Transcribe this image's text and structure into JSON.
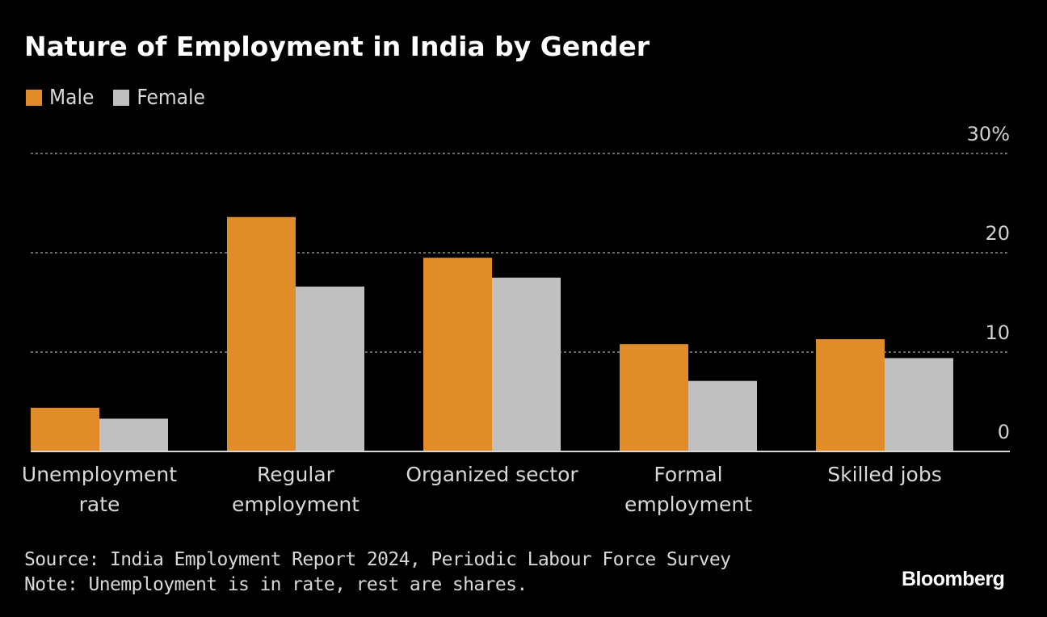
{
  "chart_data": {
    "type": "bar",
    "title": "Nature of Employment in India by Gender",
    "categories": [
      [
        "Unemployment",
        "rate"
      ],
      [
        "Regular",
        "employment"
      ],
      [
        "Organized sector"
      ],
      [
        "Formal",
        "employment"
      ],
      [
        "Skilled jobs"
      ]
    ],
    "series": [
      {
        "name": "Male",
        "color": "#e08c28",
        "values": [
          4.4,
          23.6,
          19.5,
          10.8,
          11.3
        ]
      },
      {
        "name": "Female",
        "color": "#c0c0c0",
        "values": [
          3.3,
          16.6,
          17.5,
          7.1,
          9.4
        ]
      }
    ],
    "xlabel": "",
    "ylabel": "",
    "ylim": [
      0,
      30
    ],
    "yticks": [
      {
        "value": 0,
        "label": "0"
      },
      {
        "value": 10,
        "label": "10"
      },
      {
        "value": 20,
        "label": "20"
      },
      {
        "value": 30,
        "label": "30%"
      }
    ],
    "grid": true,
    "legend_position": "top-left"
  },
  "source_line": "Source: India Employment Report 2024, Periodic Labour Force Survey",
  "note_line": "Note: Unemployment is in rate, rest are shares.",
  "brand": "Bloomberg"
}
